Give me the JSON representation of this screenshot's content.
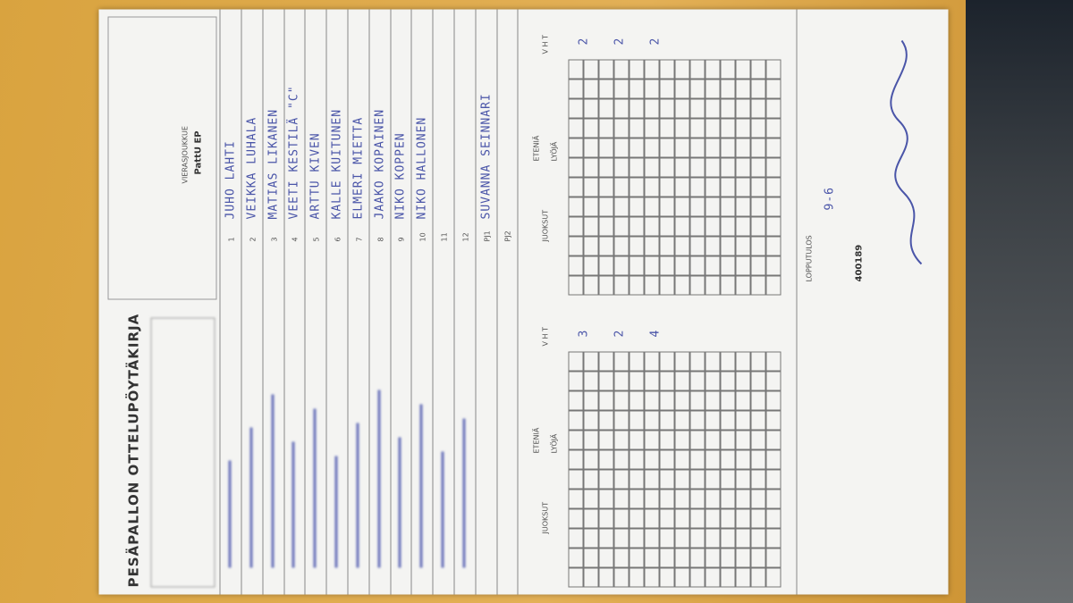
{
  "header": {
    "title": "PESÄPALLON OTTELUPÖYTÄKIRJA"
  },
  "visitors": {
    "label": "VIERASJOUKKUE",
    "team": "PattU EP",
    "players": [
      {
        "number": "1",
        "name": "JUHO LAHTI"
      },
      {
        "number": "2",
        "name": "VEIKKA LUHALA"
      },
      {
        "number": "3",
        "name": "MATIAS LIKANEN"
      },
      {
        "number": "4",
        "name": "VEETI KESTILÄ \"C\""
      },
      {
        "number": "5",
        "name": "ARTTU KIVEN"
      },
      {
        "number": "6",
        "name": "KALLE KUITUNEN"
      },
      {
        "number": "7",
        "name": "ELMERI MIETTA"
      },
      {
        "number": "8",
        "name": "JAAKO KOPAINEN"
      },
      {
        "number": "9",
        "name": "NIKO KOPPEN"
      },
      {
        "number": "10",
        "name": "NIKO HALLONEN"
      },
      {
        "number": "11"
      },
      {
        "number": "12"
      }
    ],
    "coaches": [
      {
        "role": "PJ1",
        "name": "SUVANNA SEINNARI"
      },
      {
        "role": "PJ2"
      }
    ]
  },
  "columns": {
    "runs": "JUOKSUT",
    "advance": "ETENIÄ",
    "batter": "LYÖJÄ",
    "periods": "V H T"
  },
  "home_periods": [
    "3",
    "2",
    "4"
  ],
  "visitor_periods": [
    "2",
    "2",
    "2"
  ],
  "result": {
    "label": "LOPPUTULOS",
    "score": "9-6",
    "number": "400189"
  }
}
